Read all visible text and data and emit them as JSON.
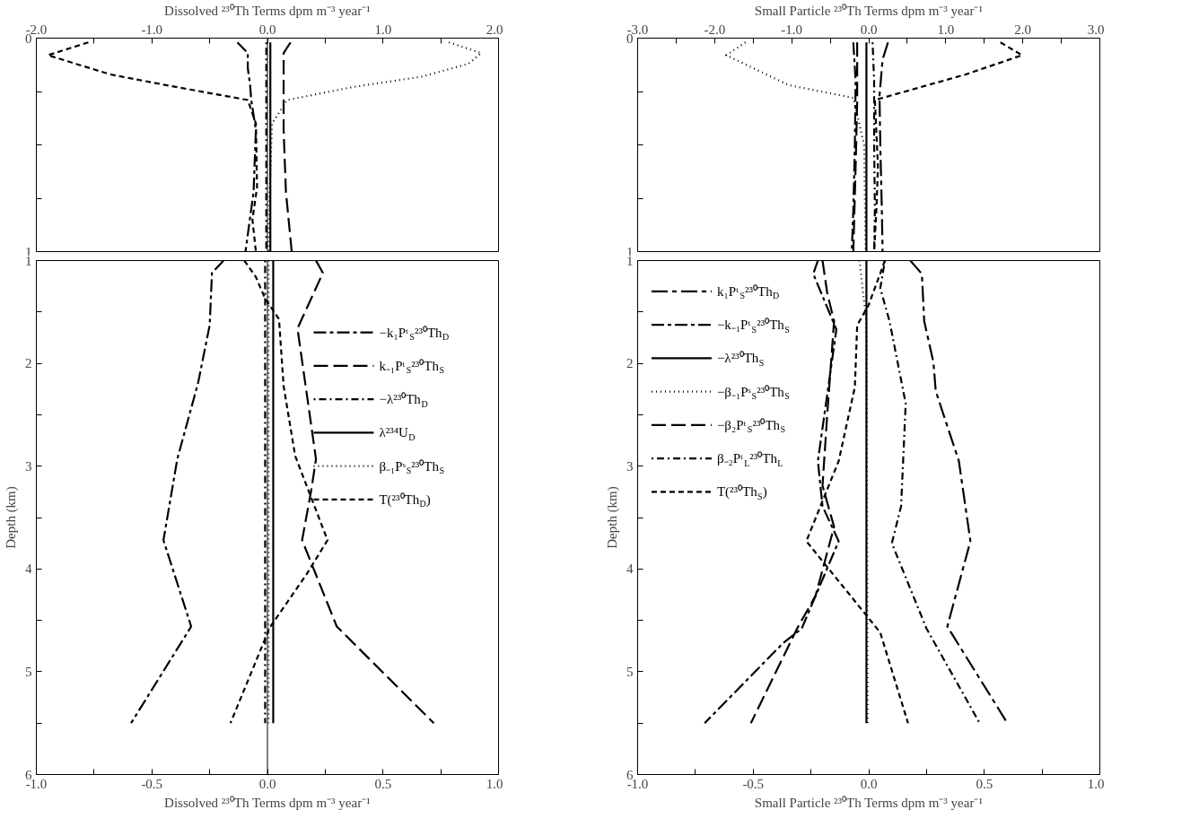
{
  "chart_data": [
    {
      "type": "line",
      "xlabel": "Dissolved ²³⁰Th Terms dpm m⁻³ year⁻¹",
      "xlim": [
        -2.0,
        2.0
      ],
      "ylim": [
        1,
        0
      ],
      "xticks": [
        {
          "value": -2.0,
          "label": "-2.0"
        },
        {
          "value": -1.5,
          "label": null
        },
        {
          "value": -1.0,
          "label": "-1.0"
        },
        {
          "value": -0.5,
          "label": null
        },
        {
          "value": 0.0,
          "label": "0.0"
        },
        {
          "value": 0.5,
          "label": null
        },
        {
          "value": 1.0,
          "label": "1.0"
        },
        {
          "value": 1.5,
          "label": null
        },
        {
          "value": 2.0,
          "label": "2.0"
        }
      ],
      "yticks": [
        0,
        {
          "value": 0.25,
          "label": null
        },
        {
          "value": 0.5,
          "label": null
        },
        {
          "value": 0.75,
          "label": null
        },
        1
      ],
      "grid": false,
      "legend": false,
      "ref_lines": [
        {
          "axis": "x",
          "value": 0,
          "label": null
        }
      ],
      "series": [
        {
          "color": "#000000",
          "line_style": "dashdot",
          "x": [
            -0.26,
            -0.17,
            -0.17,
            -0.15,
            -0.14,
            -0.1,
            -0.12,
            -0.19
          ],
          "values": [
            0.02,
            0.07,
            0.14,
            0.22,
            0.29,
            0.43,
            0.72,
            1.0
          ]
        },
        {
          "color": "#000000",
          "line_style": "longdash",
          "x": [
            0.2,
            0.14,
            0.14,
            0.14,
            0.14,
            0.14,
            0.16,
            0.21
          ],
          "values": [
            0.02,
            0.07,
            0.14,
            0.22,
            0.29,
            0.43,
            0.72,
            1.0
          ]
        },
        {
          "color": "#000000",
          "line_style": "dotdash",
          "x": [
            -0.01,
            -0.01
          ],
          "values": [
            0.02,
            1.0
          ]
        },
        {
          "color": "#000000",
          "line_style": "solid",
          "x": [
            0.025,
            0.025
          ],
          "values": [
            0.02,
            1.0
          ]
        },
        {
          "color": "#000000",
          "line_style": "dotted",
          "x": [
            1.57,
            1.85,
            1.74,
            1.34,
            0.73,
            0.17,
            0.04,
            0.02,
            0.01
          ],
          "values": [
            0.02,
            0.07,
            0.12,
            0.18,
            0.23,
            0.29,
            0.4,
            0.7,
            1.0
          ]
        },
        {
          "color": "#000000",
          "line_style": "dashed",
          "x": [
            -1.55,
            -1.9,
            -1.36,
            -0.88,
            -0.17,
            -0.1,
            -0.09,
            -0.13,
            -0.1
          ],
          "values": [
            0.02,
            0.08,
            0.17,
            0.22,
            0.29,
            0.4,
            0.7,
            0.85,
            1.0
          ]
        }
      ]
    },
    {
      "type": "line",
      "xlabel": "Small Particle ²³⁰Th Terms dpm m⁻³ year⁻¹",
      "xlim": [
        -3.0,
        3.0
      ],
      "ylim": [
        1,
        0
      ],
      "xticks": [
        {
          "value": -3.0,
          "label": "-3.0"
        },
        {
          "value": -2.5,
          "label": null
        },
        {
          "value": -2.0,
          "label": "-2.0"
        },
        {
          "value": -1.5,
          "label": null
        },
        {
          "value": -1.0,
          "label": "-1.0"
        },
        {
          "value": -0.5,
          "label": null
        },
        {
          "value": 0.0,
          "label": "0.0"
        },
        {
          "value": 0.5,
          "label": null
        },
        {
          "value": 1.0,
          "label": "1.0"
        },
        {
          "value": 1.5,
          "label": null
        },
        {
          "value": 2.0,
          "label": "2.0"
        },
        {
          "value": 2.5,
          "label": null
        },
        {
          "value": 3.0,
          "label": "3.0"
        }
      ],
      "yticks": [
        0,
        {
          "value": 0.25,
          "label": null
        },
        {
          "value": 0.5,
          "label": null
        },
        {
          "value": 0.75,
          "label": null
        },
        1
      ],
      "grid": false,
      "legend": false,
      "series": [
        {
          "color": "#000000",
          "line_style": "longdashdot",
          "x": [
            0.25,
            0.18,
            0.14,
            0.15,
            0.17,
            0.18
          ],
          "values": [
            0.02,
            0.1,
            0.27,
            0.5,
            0.8,
            1.0
          ]
        },
        {
          "color": "#000000",
          "line_style": "dashdot",
          "x": [
            -0.2,
            -0.17,
            -0.18,
            -0.2,
            -0.22
          ],
          "values": [
            0.02,
            0.2,
            0.5,
            0.8,
            1.0
          ]
        },
        {
          "color": "#000000",
          "line_style": "solid",
          "x": [
            -0.03,
            -0.03
          ],
          "values": [
            0.02,
            1.0
          ]
        },
        {
          "color": "#000000",
          "line_style": "dotted",
          "x": [
            -1.6,
            -1.85,
            -1.04,
            -0.2,
            -0.06,
            -0.04
          ],
          "values": [
            0.02,
            0.08,
            0.22,
            0.28,
            0.5,
            1.0
          ]
        },
        {
          "color": "#000000",
          "line_style": "longdash",
          "x": [
            -0.15,
            -0.15,
            -0.17,
            -0.2
          ],
          "values": [
            0.02,
            0.3,
            0.6,
            1.0
          ]
        },
        {
          "color": "#000000",
          "line_style": "dotdash",
          "x": [
            0.05,
            0.07,
            0.07,
            0.08,
            0.07
          ],
          "values": [
            0.02,
            0.2,
            0.5,
            0.8,
            1.0
          ]
        },
        {
          "color": "#000000",
          "line_style": "dashed",
          "x": [
            1.71,
            1.99,
            1.26,
            0.08,
            0.1,
            0.12,
            0.1,
            0.07
          ],
          "values": [
            0.02,
            0.08,
            0.17,
            0.29,
            0.45,
            0.6,
            0.8,
            1.0
          ]
        }
      ]
    },
    {
      "type": "line",
      "xlabel": "Dissolved ²³⁰Th Terms dpm m⁻³ year⁻¹",
      "ylabel": "Depth (km)",
      "xlim": [
        -1.0,
        1.0
      ],
      "ylim": [
        6,
        1
      ],
      "xticks": [
        {
          "value": -1.0,
          "label": "-1.0"
        },
        {
          "value": -0.75,
          "label": null
        },
        {
          "value": -0.5,
          "label": "-0.5"
        },
        {
          "value": -0.25,
          "label": null
        },
        {
          "value": 0.0,
          "label": "0.0"
        },
        {
          "value": 0.25,
          "label": null
        },
        {
          "value": 0.5,
          "label": "0.5"
        },
        {
          "value": 0.75,
          "label": null
        },
        {
          "value": 1.0,
          "label": "1.0"
        }
      ],
      "yticks": [
        1,
        {
          "value": 1.5,
          "label": null
        },
        2,
        {
          "value": 2.5,
          "label": null
        },
        3,
        {
          "value": 3.5,
          "label": null
        },
        4,
        {
          "value": 4.5,
          "label": null
        },
        5,
        {
          "value": 5.5,
          "label": null
        },
        6
      ],
      "grid": false,
      "legend": "right",
      "ref_lines": [
        {
          "axis": "x",
          "value": 0,
          "label": null
        }
      ],
      "series": [
        {
          "name": "−k₁Pᵗ$_{S}$²³⁰Th$_{D}$",
          "color": "#000000",
          "line_style": "dashdot",
          "x": [
            -0.19,
            -0.24,
            -0.25,
            -0.3,
            -0.39,
            -0.45,
            -0.33,
            -0.59
          ],
          "values": [
            1.0,
            1.12,
            1.63,
            2.19,
            2.93,
            3.72,
            4.56,
            5.5
          ]
        },
        {
          "name": "k₋₁Pᵗ$_{S}$²³⁰Th$_{S}$",
          "color": "#000000",
          "line_style": "longdash",
          "x": [
            0.21,
            0.24,
            0.13,
            0.21,
            0.19,
            0.15,
            0.3,
            0.72
          ],
          "values": [
            1.0,
            1.12,
            1.66,
            2.93,
            3.23,
            3.72,
            4.56,
            5.5
          ]
        },
        {
          "name": "−λ²³⁰Th$_{D}$",
          "color": "#000000",
          "line_style": "dotdash",
          "x": [
            -0.01,
            -0.01
          ],
          "values": [
            1.0,
            5.5
          ]
        },
        {
          "name": "λ²³⁴U$_{D}$",
          "color": "#000000",
          "line_style": "solid",
          "x": [
            0.025,
            0.025
          ],
          "values": [
            1.0,
            5.5
          ]
        },
        {
          "name": "β₋₁Pˢ$_{S}$²³⁰Th$_{S}$",
          "color": "#000000",
          "line_style": "dotted",
          "x": [
            0.005,
            0.005
          ],
          "values": [
            1.0,
            5.5
          ]
        },
        {
          "name": "T(²³⁰Th$_{D}$)",
          "color": "#000000",
          "line_style": "dashed",
          "x": [
            -0.1,
            -0.05,
            -0.01,
            0.05,
            0.07,
            0.12,
            0.26,
            0.17,
            0.01,
            -0.16
          ],
          "values": [
            1.0,
            1.16,
            1.37,
            1.57,
            2.22,
            2.9,
            3.72,
            4.05,
            4.57,
            5.5
          ]
        }
      ]
    },
    {
      "type": "line",
      "xlabel": "Small Particle ²³⁰Th Terms dpm m⁻³ year⁻¹",
      "ylabel": "Depth (km)",
      "xlim": [
        -1.0,
        1.0
      ],
      "ylim": [
        6,
        1
      ],
      "xticks": [
        {
          "value": -1.0,
          "label": "-1.0"
        },
        {
          "value": -0.75,
          "label": null
        },
        {
          "value": -0.5,
          "label": "-0.5"
        },
        {
          "value": -0.25,
          "label": null
        },
        {
          "value": 0.0,
          "label": "0.0"
        },
        {
          "value": 0.25,
          "label": null
        },
        {
          "value": 0.5,
          "label": "0.5"
        },
        {
          "value": 0.75,
          "label": null
        },
        {
          "value": 1.0,
          "label": "1.0"
        }
      ],
      "yticks": [
        1,
        {
          "value": 1.5,
          "label": null
        },
        2,
        {
          "value": 2.5,
          "label": null
        },
        3,
        {
          "value": 3.5,
          "label": null
        },
        4,
        {
          "value": 4.5,
          "label": null
        },
        5,
        {
          "value": 5.5,
          "label": null
        },
        6
      ],
      "grid": false,
      "legend": "top left",
      "series": [
        {
          "name": "k₁Pᵗ$_{S}$²³⁰Th$_{D}$",
          "color": "#000000",
          "line_style": "longdashdot",
          "x": [
            0.18,
            0.23,
            0.24,
            0.28,
            0.29,
            0.39,
            0.44,
            0.34,
            0.6
          ],
          "values": [
            1.0,
            1.13,
            1.59,
            1.99,
            2.27,
            2.95,
            3.73,
            4.56,
            5.5
          ]
        },
        {
          "name": "−k₋₁Pᵗ$_{S}$²³⁰Th$_{S}$",
          "color": "#000000",
          "line_style": "dashdot",
          "x": [
            -0.22,
            -0.24,
            -0.14,
            -0.22,
            -0.2,
            -0.13,
            -0.29,
            -0.37,
            -0.71
          ],
          "values": [
            1.0,
            1.13,
            1.67,
            2.95,
            3.39,
            3.73,
            4.58,
            4.72,
            5.5
          ]
        },
        {
          "name": "−λ²³⁰Th$_{S}$",
          "color": "#000000",
          "line_style": "solid",
          "x": [
            -0.01,
            -0.01
          ],
          "values": [
            1.0,
            5.5
          ]
        },
        {
          "name": "−β₋₁Pˢ$_{S}$²³⁰Th$_{S}$",
          "color": "#000000",
          "line_style": "dotted",
          "x": [
            -0.04,
            -0.01,
            -0.005
          ],
          "values": [
            1.0,
            1.6,
            5.5
          ]
        },
        {
          "name": "−β₂Pᵗ$_{S}$²³⁰Th$_{S}$",
          "color": "#000000",
          "line_style": "longdash",
          "x": [
            -0.2,
            -0.18,
            -0.15,
            -0.18,
            -0.2,
            -0.15,
            -0.23,
            -0.31,
            -0.51
          ],
          "values": [
            1.0,
            1.31,
            1.59,
            2.51,
            3.19,
            3.59,
            4.26,
            4.58,
            5.5
          ]
        },
        {
          "name": "β₋₂Pᵗ$_{L}$²³⁰Th$_{L}$",
          "color": "#000000",
          "line_style": "dotdash",
          "x": [
            0.07,
            0.05,
            0.09,
            0.16,
            0.14,
            0.1,
            0.25,
            0.48
          ],
          "values": [
            1.0,
            1.27,
            1.59,
            2.39,
            3.39,
            3.75,
            4.58,
            5.5
          ]
        },
        {
          "name": "T(²³⁰Th$_{S}$)",
          "color": "#000000",
          "line_style": "dashed",
          "x": [
            0.07,
            0.0,
            -0.05,
            -0.06,
            -0.13,
            -0.27,
            0.0,
            0.05,
            0.17
          ],
          "values": [
            1.0,
            1.43,
            1.63,
            2.23,
            2.95,
            3.73,
            4.48,
            4.62,
            5.5
          ]
        }
      ]
    }
  ]
}
